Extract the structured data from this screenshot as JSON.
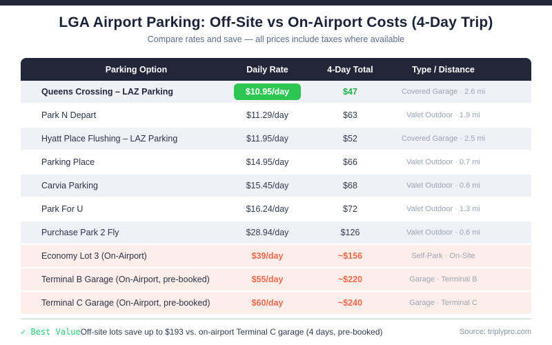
{
  "page": {
    "title": "LGA Airport Parking: Off-Site vs On-Airport Costs (4-Day Trip)",
    "subtitle": "Compare rates and save — all prices include taxes where available"
  },
  "table": {
    "columns": [
      "Parking Option",
      "Daily Rate",
      "4-Day Total",
      "Type / Distance"
    ],
    "rows": [
      {
        "name": "Queens Crossing – LAZ Parking",
        "daily": "$10.95/day",
        "total": "$47",
        "type": "Covered Garage · 2.6 mi",
        "style": "best"
      },
      {
        "name": "Park N Depart",
        "daily": "$11.29/day",
        "total": "$63",
        "type": "Valet Outdoor · 1.9 mi",
        "style": "offsite"
      },
      {
        "name": "Hyatt Place Flushing – LAZ Parking",
        "daily": "$11.95/day",
        "total": "$52",
        "type": "Covered Garage · 2.5 mi",
        "style": "offsite"
      },
      {
        "name": "Parking Place",
        "daily": "$14.95/day",
        "total": "$66",
        "type": "Valet Outdoor · 0.7 mi",
        "style": "offsite"
      },
      {
        "name": "Carvia Parking",
        "daily": "$15.45/day",
        "total": "$68",
        "type": "Valet Outdoor · 0.6 mi",
        "style": "offsite"
      },
      {
        "name": "Park For U",
        "daily": "$16.24/day",
        "total": "$72",
        "type": "Valet Outdoor · 1.3 mi",
        "style": "offsite"
      },
      {
        "name": "Purchase Park 2 Fly",
        "daily": "$28.94/day",
        "total": "$126",
        "type": "Valet Outdoor · 0.6 mi",
        "style": "offsite"
      },
      {
        "name": "Economy Lot 3 (On-Airport)",
        "daily": "$39/day",
        "total": "~$156",
        "type": "Self-Park · On-Site",
        "style": "airport"
      },
      {
        "name": "Terminal B Garage (On-Airport, pre-booked)",
        "daily": "$55/day",
        "total": "~$220",
        "type": "Garage · Terminal B",
        "style": "airport"
      },
      {
        "name": "Terminal C Garage (On-Airport, pre-booked)",
        "daily": "$60/day",
        "total": "~$240",
        "type": "Garage · Terminal C",
        "style": "airport"
      }
    ]
  },
  "footer": {
    "badge_icon": "✓",
    "badge_label": "Best Value",
    "note": "Off-site lots save up to $193 vs. on-airport Terminal C garage (4 days, pre-booked)",
    "source": "Source: triplypro.com"
  },
  "colors": {
    "header_navy": "#212639",
    "best_value_green": "#2dc653",
    "best_total_green": "#21b14b",
    "on_airport_red": "#f4694c",
    "on_airport_row_pink": "#fdeeea",
    "zebra_row_gray": "#eef1f6",
    "muted_type_gray": "#9ba4b5"
  },
  "chart_data": {
    "type": "table",
    "title": "LGA Airport Parking: Off-Site vs On-Airport Costs (4-Day Trip)",
    "subtitle": "Compare rates and save — all prices include taxes where available",
    "columns": [
      "Parking Option",
      "Daily Rate",
      "4-Day Total",
      "Type / Distance"
    ],
    "rows": [
      {
        "option": "Queens Crossing – LAZ Parking",
        "daily_rate_usd": 10.95,
        "four_day_total_usd": 47,
        "approx_total": false,
        "type": "Covered Garage",
        "distance": "2.6 mi",
        "category": "off-site",
        "best_value": true
      },
      {
        "option": "Park N Depart",
        "daily_rate_usd": 11.29,
        "four_day_total_usd": 63,
        "approx_total": false,
        "type": "Valet Outdoor",
        "distance": "1.9 mi",
        "category": "off-site",
        "best_value": false
      },
      {
        "option": "Hyatt Place Flushing – LAZ Parking",
        "daily_rate_usd": 11.95,
        "four_day_total_usd": 52,
        "approx_total": false,
        "type": "Covered Garage",
        "distance": "2.5 mi",
        "category": "off-site",
        "best_value": false
      },
      {
        "option": "Parking Place",
        "daily_rate_usd": 14.95,
        "four_day_total_usd": 66,
        "approx_total": false,
        "type": "Valet Outdoor",
        "distance": "0.7 mi",
        "category": "off-site",
        "best_value": false
      },
      {
        "option": "Carvia Parking",
        "daily_rate_usd": 15.45,
        "four_day_total_usd": 68,
        "approx_total": false,
        "type": "Valet Outdoor",
        "distance": "0.6 mi",
        "category": "off-site",
        "best_value": false
      },
      {
        "option": "Park For U",
        "daily_rate_usd": 16.24,
        "four_day_total_usd": 72,
        "approx_total": false,
        "type": "Valet Outdoor",
        "distance": "1.3 mi",
        "category": "off-site",
        "best_value": false
      },
      {
        "option": "Purchase Park 2 Fly",
        "daily_rate_usd": 28.94,
        "four_day_total_usd": 126,
        "approx_total": false,
        "type": "Valet Outdoor",
        "distance": "0.6 mi",
        "category": "off-site",
        "best_value": false
      },
      {
        "option": "Economy Lot 3 (On-Airport)",
        "daily_rate_usd": 39,
        "four_day_total_usd": 156,
        "approx_total": true,
        "type": "Self-Park",
        "distance": "On-Site",
        "category": "on-airport",
        "best_value": false
      },
      {
        "option": "Terminal B Garage (On-Airport, pre-booked)",
        "daily_rate_usd": 55,
        "four_day_total_usd": 220,
        "approx_total": true,
        "type": "Garage",
        "distance": "Terminal B",
        "category": "on-airport",
        "best_value": false
      },
      {
        "option": "Terminal C Garage (On-Airport, pre-booked)",
        "daily_rate_usd": 60,
        "four_day_total_usd": 240,
        "approx_total": true,
        "type": "Garage",
        "distance": "Terminal C",
        "category": "on-airport",
        "best_value": false
      }
    ],
    "annotations": [
      "✓ Best Value",
      "Off-site lots save up to $193 vs. on-airport Terminal C garage (4 days, pre-booked)",
      "Source: triplypro.com"
    ]
  }
}
